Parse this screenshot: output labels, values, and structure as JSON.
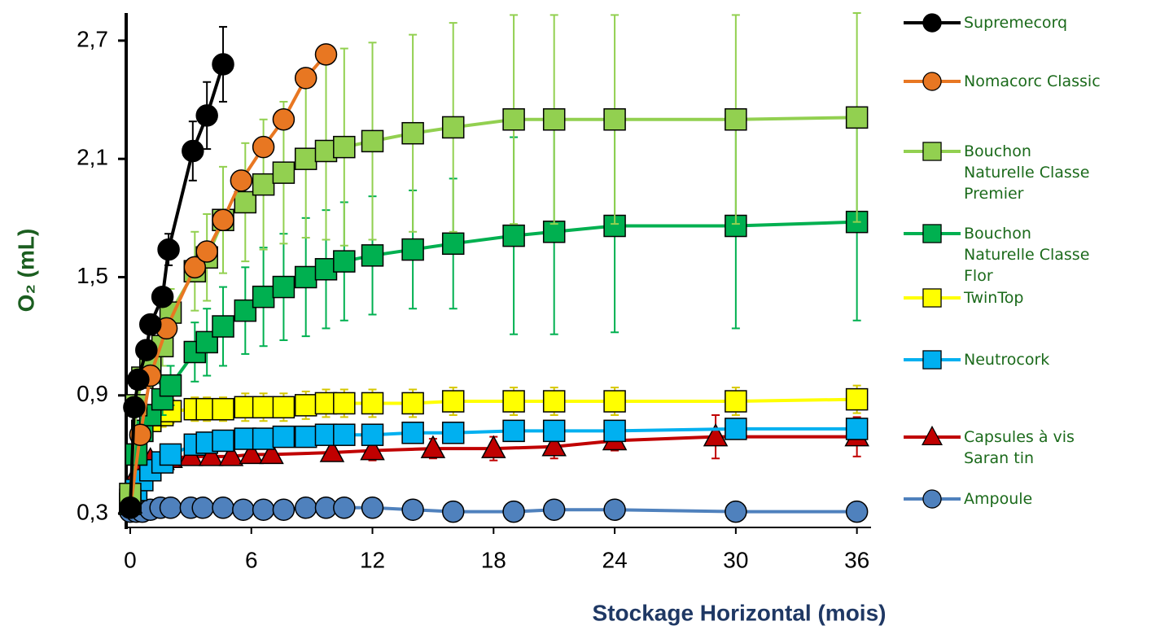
{
  "chart_data": {
    "type": "line",
    "xlabel": "Stockage Horizontal (mois)",
    "ylabel": "O₂ (mL)",
    "xlim": [
      -0.2,
      36.7
    ],
    "xticks": [
      0,
      6,
      12,
      18,
      24,
      30,
      36
    ],
    "ylim": [
      0.23,
      2.84
    ],
    "yticks": [
      {
        "value": 0.3,
        "label": "0,3"
      },
      {
        "value": 0.9,
        "label": "0,9"
      },
      {
        "value": 1.5,
        "label": "1,5"
      },
      {
        "value": 2.1,
        "label": "2,1"
      },
      {
        "value": 2.7,
        "label": "2,7"
      }
    ],
    "legend": "right",
    "series": [
      {
        "name": "Supremecorq",
        "color": "#000000",
        "marker": "circle",
        "x": [
          0,
          0.2,
          0.4,
          0.8,
          1,
          1.6,
          1.9,
          3.1,
          3.8,
          4.6
        ],
        "values": [
          0.33,
          0.84,
          0.98,
          1.13,
          1.26,
          1.4,
          1.64,
          2.14,
          2.32,
          2.58
        ],
        "errors": [
          null,
          null,
          null,
          null,
          null,
          null,
          0.08,
          0.15,
          0.17,
          0.19
        ]
      },
      {
        "name": "Nomacorc Classic",
        "color": "#e87722",
        "marker": "circle",
        "x": [
          0,
          0.5,
          1,
          1.8,
          3.2,
          3.8,
          4.6,
          5.5,
          6.6,
          7.6,
          8.7,
          9.7
        ],
        "values": [
          0.33,
          0.7,
          1.0,
          1.24,
          1.55,
          1.63,
          1.79,
          1.99,
          2.16,
          2.3,
          2.51,
          2.63
        ]
      },
      {
        "name": "Bouchon Naturelle Classe Premier",
        "color": "#92d050",
        "marker": "square",
        "x": [
          0,
          0.3,
          0.6,
          1,
          1.6,
          2,
          3.2,
          3.8,
          4.6,
          5.7,
          6.6,
          7.6,
          8.7,
          9.7,
          10.6,
          12,
          14,
          16,
          19,
          21,
          24,
          30,
          36
        ],
        "values": [
          0.4,
          0.85,
          0.99,
          1.05,
          1.15,
          1.32,
          1.53,
          1.6,
          1.79,
          1.88,
          1.97,
          2.03,
          2.1,
          2.14,
          2.16,
          2.19,
          2.23,
          2.26,
          2.3,
          2.3,
          2.3,
          2.3,
          2.31
        ],
        "errors": [
          null,
          null,
          null,
          null,
          0.1,
          0.12,
          0.2,
          0.22,
          0.27,
          0.3,
          0.33,
          0.36,
          0.4,
          0.45,
          0.5,
          0.5,
          0.5,
          0.53,
          0.53,
          0.53,
          0.53,
          0.53,
          0.53
        ]
      },
      {
        "name": "Bouchon Naturelle Classe Flor",
        "color": "#00b050",
        "marker": "square",
        "x": [
          0,
          0.3,
          0.6,
          1,
          1.6,
          2,
          3.2,
          3.8,
          4.6,
          5.7,
          6.6,
          7.6,
          8.7,
          9.7,
          10.6,
          12,
          14,
          16,
          19,
          21,
          24,
          30,
          36
        ],
        "values": [
          0.35,
          0.6,
          0.72,
          0.8,
          0.88,
          0.95,
          1.12,
          1.17,
          1.25,
          1.33,
          1.4,
          1.45,
          1.5,
          1.54,
          1.58,
          1.61,
          1.64,
          1.67,
          1.71,
          1.73,
          1.76,
          1.76,
          1.78
        ],
        "errors": [
          null,
          null,
          null,
          null,
          0.08,
          0.1,
          0.15,
          0.17,
          0.2,
          0.22,
          0.25,
          0.27,
          0.3,
          0.3,
          0.3,
          0.3,
          0.3,
          0.33,
          0.5,
          0.52,
          0.54,
          0.52,
          0.5
        ]
      },
      {
        "name": "TwinTop",
        "color": "#ffff00",
        "marker": "square",
        "x": [
          0,
          0.3,
          0.6,
          1,
          1.6,
          2,
          3.2,
          3.8,
          4.6,
          5.7,
          6.6,
          7.6,
          8.7,
          9.7,
          10.6,
          12,
          14,
          16,
          19,
          21,
          24,
          30,
          36
        ],
        "values": [
          0.37,
          0.6,
          0.72,
          0.77,
          0.8,
          0.82,
          0.83,
          0.83,
          0.83,
          0.84,
          0.84,
          0.84,
          0.85,
          0.86,
          0.86,
          0.86,
          0.86,
          0.87,
          0.87,
          0.87,
          0.87,
          0.87,
          0.88
        ],
        "errors": [
          null,
          0.04,
          0.05,
          0.05,
          0.06,
          0.06,
          0.06,
          0.06,
          0.06,
          0.07,
          0.07,
          0.07,
          0.07,
          0.07,
          0.07,
          0.07,
          0.07,
          0.07,
          0.07,
          0.07,
          0.07,
          0.07,
          0.07
        ]
      },
      {
        "name": "Neutrocork",
        "color": "#00b0f0",
        "marker": "square",
        "x": [
          0,
          0.3,
          0.6,
          1,
          1.6,
          2,
          3.2,
          3.8,
          4.6,
          5.7,
          6.6,
          7.6,
          8.7,
          9.7,
          10.6,
          12,
          14,
          16,
          19,
          21,
          24,
          30,
          36
        ],
        "values": [
          0.35,
          0.42,
          0.47,
          0.52,
          0.56,
          0.6,
          0.65,
          0.66,
          0.67,
          0.68,
          0.68,
          0.69,
          0.69,
          0.7,
          0.7,
          0.7,
          0.71,
          0.71,
          0.72,
          0.72,
          0.72,
          0.73,
          0.73
        ],
        "errors": [
          null,
          0.02,
          0.02,
          0.03,
          0.03,
          0.03,
          0.03,
          0.03,
          0.03,
          0.03,
          0.03,
          0.03,
          0.03,
          0.04,
          0.04,
          0.04,
          0.04,
          0.04,
          0.04,
          0.04,
          0.04,
          0.05,
          0.05
        ]
      },
      {
        "name": "Capsules à vis Saran tin",
        "color": "#c00000",
        "marker": "triangle",
        "x": [
          0,
          0.3,
          0.6,
          1,
          1.6,
          2,
          3,
          4,
          5,
          6,
          7,
          10,
          12,
          15,
          18,
          21,
          24,
          29,
          36
        ],
        "values": [
          0.35,
          0.5,
          0.53,
          0.57,
          0.57,
          0.58,
          0.59,
          0.59,
          0.59,
          0.6,
          0.6,
          0.61,
          0.62,
          0.63,
          0.63,
          0.64,
          0.67,
          0.69,
          0.69
        ],
        "errors": [
          null,
          0.03,
          0.03,
          0.03,
          0.03,
          0.03,
          0.03,
          0.03,
          0.03,
          0.04,
          0.04,
          0.04,
          0.05,
          0.05,
          0.06,
          0.06,
          0.05,
          0.11,
          0.1
        ]
      },
      {
        "name": "Ampoule",
        "color": "#4f81bd",
        "marker": "circle",
        "x": [
          0,
          0.3,
          0.6,
          1,
          1.5,
          2,
          3,
          3.6,
          4.6,
          5.6,
          6.6,
          7.6,
          8.7,
          9.7,
          10.6,
          12,
          14,
          16,
          19,
          21,
          24,
          30,
          36
        ],
        "values": [
          0.31,
          0.31,
          0.31,
          0.32,
          0.33,
          0.33,
          0.33,
          0.33,
          0.33,
          0.32,
          0.32,
          0.32,
          0.33,
          0.33,
          0.33,
          0.33,
          0.32,
          0.31,
          0.31,
          0.32,
          0.32,
          0.31,
          0.31
        ]
      }
    ]
  }
}
